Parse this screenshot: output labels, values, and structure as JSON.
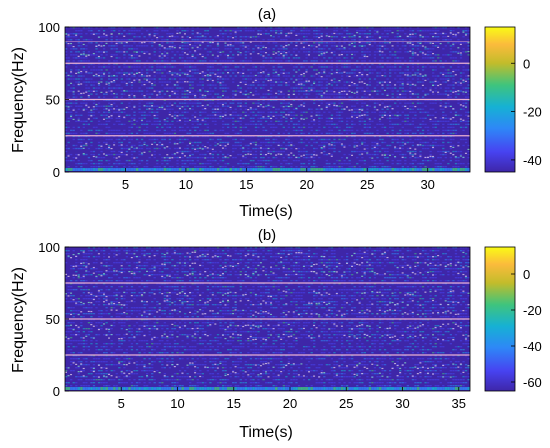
{
  "chart_data": [
    {
      "type": "heatmap",
      "title": "(a)",
      "xlabel": "Time(s)",
      "ylabel": "Frequency(Hz)",
      "xlim": [
        0,
        33.5
      ],
      "ylim": [
        0,
        100
      ],
      "xticks": [
        "5",
        "10",
        "15",
        "20",
        "25",
        "30"
      ],
      "yticks": [
        "0",
        "50",
        "100"
      ],
      "colorbar": {
        "ticks": [
          "0",
          "-20",
          "-40"
        ],
        "range": [
          -45,
          15
        ]
      },
      "harmonic_lines_hz": [
        25,
        50,
        75,
        90
      ],
      "colormap": [
        "#3e26a8",
        "#4743f1",
        "#2e87f7",
        "#16b1d4",
        "#3fc47d",
        "#c2bc2b",
        "#fbbb3c",
        "#f9fb15"
      ],
      "grid": false
    },
    {
      "type": "heatmap",
      "title": "(b)",
      "xlabel": "Time(s)",
      "ylabel": "Frequency(Hz)",
      "xlim": [
        0,
        36
      ],
      "ylim": [
        0,
        100
      ],
      "xticks": [
        "5",
        "10",
        "15",
        "20",
        "25",
        "30",
        "35"
      ],
      "yticks": [
        "0",
        "50",
        "100"
      ],
      "colorbar": {
        "ticks": [
          "0",
          "-20",
          "-40",
          "-60"
        ],
        "range": [
          -65,
          15
        ]
      },
      "harmonic_lines_hz": [
        25,
        50,
        75
      ],
      "colormap": [
        "#3e26a8",
        "#4743f1",
        "#2e87f7",
        "#16b1d4",
        "#3fc47d",
        "#c2bc2b",
        "#fbbb3c",
        "#f9fb15"
      ],
      "grid": false
    }
  ]
}
